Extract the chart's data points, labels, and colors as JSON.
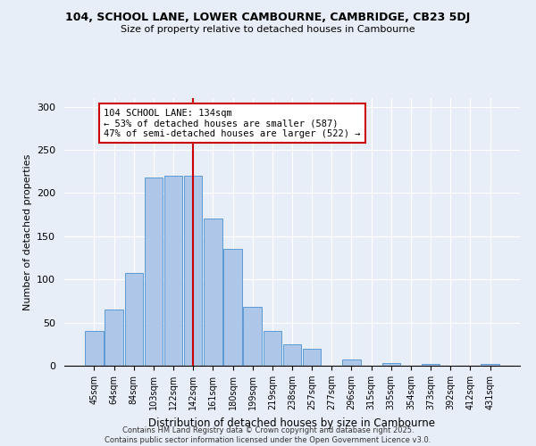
{
  "title1": "104, SCHOOL LANE, LOWER CAMBOURNE, CAMBRIDGE, CB23 5DJ",
  "title2": "Size of property relative to detached houses in Cambourne",
  "xlabel": "Distribution of detached houses by size in Cambourne",
  "ylabel": "Number of detached properties",
  "bar_labels": [
    "45sqm",
    "64sqm",
    "84sqm",
    "103sqm",
    "122sqm",
    "142sqm",
    "161sqm",
    "180sqm",
    "199sqm",
    "219sqm",
    "238sqm",
    "257sqm",
    "277sqm",
    "296sqm",
    "315sqm",
    "335sqm",
    "354sqm",
    "373sqm",
    "392sqm",
    "412sqm",
    "431sqm"
  ],
  "bar_values": [
    40,
    65,
    107,
    218,
    220,
    220,
    170,
    135,
    68,
    40,
    25,
    20,
    0,
    7,
    0,
    3,
    0,
    2,
    0,
    0,
    2
  ],
  "bar_color": "#aec6e8",
  "bar_edge_color": "#5b9bd5",
  "vline_x": 5,
  "vline_color": "#cc0000",
  "annotation_title": "104 SCHOOL LANE: 134sqm",
  "annotation_line1": "← 53% of detached houses are smaller (587)",
  "annotation_line2": "47% of semi-detached houses are larger (522) →",
  "ylim": [
    0,
    310
  ],
  "yticks": [
    0,
    50,
    100,
    150,
    200,
    250,
    300
  ],
  "background_color": "#e8eef7",
  "plot_bg_color": "#e8eef7",
  "footer1": "Contains HM Land Registry data © Crown copyright and database right 2025.",
  "footer2": "Contains public sector information licensed under the Open Government Licence v3.0."
}
